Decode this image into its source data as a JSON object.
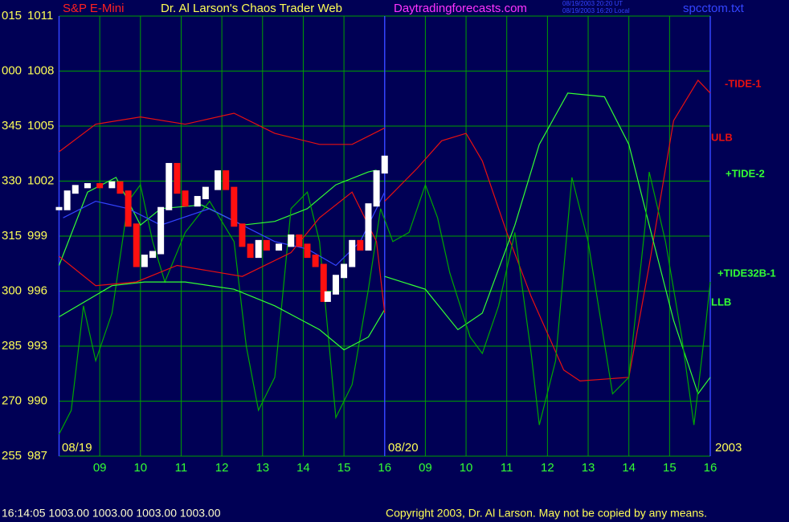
{
  "chart_data": {
    "type": "line",
    "title": "S&P E-Mini",
    "subtitle": "Dr. Al Larson's Chaos Trader Web",
    "website": "Daytradingforecasts.com",
    "timestamps": [
      "08/19/2003 20:20 UT",
      "08/19/2003 16:20 Local"
    ],
    "file": "spcctom.txt",
    "status": "16:14:05  1003.00 1003.00 1003.00 1003.00",
    "copyright": "Copyright 2003, Dr. Al Larson. May not be copied by any means.",
    "date_labels": [
      "08/19",
      "08/20",
      "2003"
    ],
    "xlim": [
      0,
      16
    ],
    "xticks": [
      {
        "value": 1,
        "label": "09"
      },
      {
        "value": 2,
        "label": "10"
      },
      {
        "value": 3,
        "label": "11"
      },
      {
        "value": 4,
        "label": "12"
      },
      {
        "value": 5,
        "label": "13"
      },
      {
        "value": 6,
        "label": "14"
      },
      {
        "value": 7,
        "label": "15"
      },
      {
        "value": 8,
        "label": "16"
      },
      {
        "value": 9,
        "label": "09"
      },
      {
        "value": 10,
        "label": "10"
      },
      {
        "value": 11,
        "label": "11"
      },
      {
        "value": 12,
        "label": "12"
      },
      {
        "value": 13,
        "label": "13"
      },
      {
        "value": 14,
        "label": "14"
      },
      {
        "value": 15,
        "label": "15"
      },
      {
        "value": 16,
        "label": "16"
      }
    ],
    "ylim": [
      987,
      1011
    ],
    "yticks": [
      987,
      990,
      993,
      996,
      999,
      1002,
      1005,
      1008,
      1011
    ],
    "ytick_angles": [
      "255",
      "270",
      "285",
      "300",
      "315",
      "330",
      "345",
      "000",
      "015"
    ],
    "grid": true,
    "price": {
      "color_up": "#ffffff",
      "color_down": "#ff1010",
      "x": [
        0.0,
        0.2,
        0.4,
        0.7,
        1.0,
        1.3,
        1.5,
        1.7,
        1.9,
        2.1,
        2.3,
        2.5,
        2.7,
        2.9,
        3.1,
        3.4,
        3.6,
        3.9,
        4.1,
        4.3,
        4.5,
        4.7,
        4.9,
        5.1,
        5.4,
        5.7,
        5.9,
        6.1,
        6.3,
        6.5,
        6.6,
        6.8,
        7.0,
        7.2,
        7.4,
        7.6,
        7.8,
        8.0
      ],
      "values": [
        1000.5,
        1001.4,
        1001.7,
        1001.8,
        1001.7,
        1001.9,
        1001.4,
        999.6,
        997.4,
        997.9,
        998.1,
        1000.5,
        1002.9,
        1001.4,
        1000.7,
        1001.1,
        1001.6,
        1002.5,
        1001.6,
        999.6,
        998.5,
        997.9,
        998.7,
        998.3,
        998.5,
        999.0,
        998.5,
        997.9,
        997.4,
        995.5,
        995.9,
        996.8,
        997.4,
        998.7,
        998.3,
        1000.7,
        1002.5,
        1003.3
      ]
    },
    "series": [
      {
        "name": "-TIDE-1",
        "color": "#e81010",
        "x": [
          8.0,
          8.8,
          9.4,
          10.0,
          10.4,
          11.0,
          11.6,
          12.4,
          12.8,
          14.0,
          14.5,
          15.1,
          15.7,
          16.0
        ],
        "values": [
          1000.9,
          1002.7,
          1004.2,
          1004.6,
          1003.1,
          999.2,
          995.7,
          991.7,
          991.1,
          991.3,
          997.4,
          1005.3,
          1007.5,
          1006.8
        ]
      },
      {
        "name": "ULB",
        "color": "#e81010",
        "x": [
          0,
          0.9,
          2.0,
          3.1,
          4.3,
          5.3,
          6.4,
          7.2,
          8.0
        ],
        "values": [
          1003.6,
          1005.1,
          1005.5,
          1005.1,
          1005.7,
          1004.6,
          1004.0,
          1004.0,
          1004.9
        ]
      },
      {
        "name": "+TIDE-2",
        "color": "#33ff33",
        "x": [
          0,
          0.7,
          1.4,
          2.0,
          2.5,
          3.5,
          4.5,
          5.3,
          6.1,
          6.8,
          7.6,
          7.8,
          7.9,
          8.0,
          9.0,
          9.8,
          10.4,
          11.2,
          11.8,
          12.5,
          13.4,
          14.0,
          14.5,
          15.1,
          15.7,
          16.0
        ],
        "values": [
          997.4,
          1001.4,
          1002.2,
          999.6,
          1000.5,
          1000.7,
          999.6,
          999.8,
          1000.5,
          1001.8,
          1002.5,
          1002.6,
          null,
          996.8,
          996.1,
          993.9,
          994.8,
          999.6,
          1004.0,
          1006.8,
          1006.6,
          1004.0,
          999.6,
          994.4,
          990.4,
          991.3
        ]
      },
      {
        "name": "+TIDE32B-1",
        "color": "#00a800",
        "x": [
          0.0,
          0.3,
          0.6,
          0.9,
          1.3,
          1.7,
          2.0,
          2.3,
          2.6,
          3.1,
          3.7,
          4.3,
          4.6,
          4.9,
          5.3,
          5.7,
          6.1,
          6.4,
          6.8,
          7.2,
          7.6,
          7.9,
          8.2,
          8.6,
          9.0,
          9.3,
          9.6,
          10.1,
          10.4,
          10.8,
          11.2,
          11.6,
          11.8,
          12.2,
          12.6,
          13.0,
          13.6,
          14.0,
          14.4,
          14.5,
          14.9,
          15.3,
          15.6,
          15.9,
          16.0
        ],
        "values": [
          988.2,
          989.5,
          995.2,
          992.2,
          994.8,
          1000.9,
          1001.8,
          998.7,
          996.5,
          999.2,
          1000.9,
          998.7,
          993.0,
          989.5,
          991.3,
          1000.5,
          1001.4,
          998.7,
          989.1,
          990.9,
          996.1,
          1000.5,
          998.7,
          999.2,
          1001.8,
          1000.0,
          997.0,
          993.5,
          992.6,
          995.2,
          999.2,
          992.6,
          988.7,
          992.2,
          1002.2,
          998.7,
          990.4,
          991.3,
          999.6,
          1002.5,
          998.7,
          993.5,
          988.7,
          994.4,
          996.5
        ]
      },
      {
        "name": "LLB",
        "color": "#33ff33",
        "x": [
          0,
          1.3,
          2.1,
          3.1,
          4.3,
          5.3,
          6.4,
          7.0,
          7.6,
          8.0
        ],
        "values": [
          994.6,
          996.3,
          996.5,
          996.5,
          996.1,
          995.2,
          993.9,
          992.8,
          993.5,
          995.0
        ]
      },
      {
        "color": "#e81010",
        "x": [
          0,
          0.9,
          1.9,
          2.9,
          4.5,
          5.7,
          6.4,
          7.2,
          7.8,
          8.0
        ],
        "values": [
          997.9,
          996.3,
          996.5,
          997.4,
          996.8,
          998.1,
          1000.0,
          1001.4,
          998.7,
          994.8
        ]
      },
      {
        "color": "#3344ff",
        "x": [
          0.1,
          0.9,
          1.7,
          2.5,
          3.7,
          4.5,
          5.3,
          6.1,
          6.8,
          7.4,
          8.0
        ],
        "values": [
          1000.0,
          1000.9,
          1000.5,
          999.6,
          1000.5,
          999.6,
          998.7,
          998.3,
          997.4,
          998.7,
          1001.4
        ]
      }
    ]
  }
}
